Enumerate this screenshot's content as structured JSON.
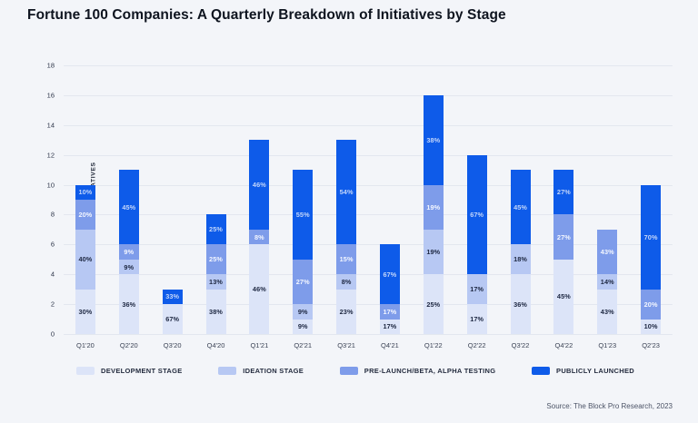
{
  "header": {
    "title": "Fortune 100 Companies: A Quarterly Breakdown of Initiatives by Stage"
  },
  "footer": {
    "source": "Source: The Block Pro Research, 2023"
  },
  "chart_data": {
    "type": "bar",
    "stacked": true,
    "title": "Fortune 100 Companies: A Quarterly Breakdown of Initiatives by Stage",
    "xlabel": "",
    "ylabel": "NUMBER OF INITIATIVES",
    "ylim": [
      0,
      18
    ],
    "yticks": [
      0,
      2,
      4,
      6,
      8,
      10,
      12,
      14,
      16,
      18
    ],
    "grid": true,
    "legend_position": "bottom",
    "categories": [
      "Q1'20",
      "Q2'20",
      "Q3'20",
      "Q4'20",
      "Q1'21",
      "Q2'21",
      "Q3'21",
      "Q4'21",
      "Q1'22",
      "Q2'22",
      "Q3'22",
      "Q4'22",
      "Q1'23",
      "Q2'23"
    ],
    "series": [
      {
        "name": "DEVELOPMENT STAGE",
        "color": "#dce4f8",
        "label_color": "#1c2640",
        "values": [
          3,
          4,
          2,
          3,
          6,
          1,
          3,
          1,
          4,
          2,
          4,
          5,
          3,
          1
        ],
        "percent_labels": [
          "30%",
          "36%",
          "67%",
          "38%",
          "46%",
          "9%",
          "23%",
          "17%",
          "25%",
          "17%",
          "36%",
          "45%",
          "43%",
          "10%"
        ]
      },
      {
        "name": "IDEATION STAGE",
        "color": "#b7c8f3",
        "label_color": "#1c2640",
        "values": [
          4,
          1,
          0,
          1,
          0,
          1,
          1,
          0,
          3,
          2,
          2,
          0,
          1,
          0
        ],
        "percent_labels": [
          "40%",
          "9%",
          "",
          "13%",
          "",
          "9%",
          "8%",
          "",
          "19%",
          "17%",
          "18%",
          "",
          "14%",
          ""
        ]
      },
      {
        "name": "PRE-LAUNCH/BETA, ALPHA TESTING",
        "color": "#7e9cea",
        "label_color": "#f4f7ff",
        "values": [
          2,
          1,
          0,
          2,
          1,
          3,
          2,
          1,
          3,
          0,
          0,
          3,
          3,
          2
        ],
        "percent_labels": [
          "20%",
          "9%",
          "",
          "25%",
          "8%",
          "27%",
          "15%",
          "17%",
          "19%",
          "",
          "",
          "27%",
          "43%",
          "20%"
        ]
      },
      {
        "name": "PUBLICLY LAUNCHED",
        "color": "#0e5be9",
        "label_color": "#c3d6fa",
        "values": [
          1,
          5,
          1,
          2,
          6,
          6,
          7,
          4,
          6,
          8,
          5,
          3,
          0,
          7
        ],
        "percent_labels": [
          "10%",
          "45%",
          "33%",
          "25%",
          "46%",
          "55%",
          "54%",
          "67%",
          "38%",
          "67%",
          "45%",
          "27%",
          "",
          "70%"
        ]
      }
    ],
    "bar_totals": [
      10,
      11,
      3,
      8,
      13,
      11,
      13,
      6,
      16,
      12,
      11,
      11,
      7,
      10
    ]
  }
}
